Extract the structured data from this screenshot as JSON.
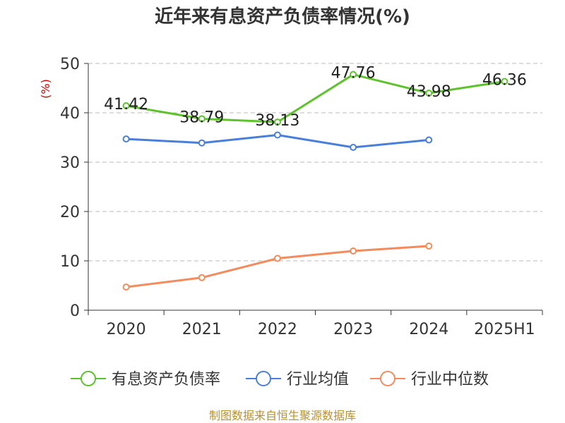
{
  "chart_data": {
    "type": "line",
    "title": "近年来有息资产负债率情况(%)",
    "ylabel": "(%)",
    "xlabel": "",
    "categories": [
      "2020",
      "2021",
      "2022",
      "2023",
      "2024",
      "2025H1"
    ],
    "ylim": [
      0,
      50
    ],
    "yticks": [
      0,
      10,
      20,
      30,
      40,
      50
    ],
    "grid": true,
    "legend_position": "bottom",
    "series": [
      {
        "name": "有息资产负债率",
        "color": "#5ec22d",
        "values": [
          41.42,
          38.79,
          38.13,
          47.76,
          43.98,
          46.36
        ],
        "labels": [
          "41.42",
          "38.79",
          "38.13",
          "47.76",
          "43.98",
          "46.36"
        ]
      },
      {
        "name": "行业均值",
        "color": "#4a7fd9",
        "values": [
          34.7,
          33.9,
          35.5,
          33.0,
          34.5,
          null
        ]
      },
      {
        "name": "行业中位数",
        "color": "#f38b5c",
        "values": [
          4.7,
          6.6,
          10.5,
          12.0,
          13.0,
          null
        ]
      }
    ]
  },
  "source": "制图数据来自恒生聚源数据库"
}
